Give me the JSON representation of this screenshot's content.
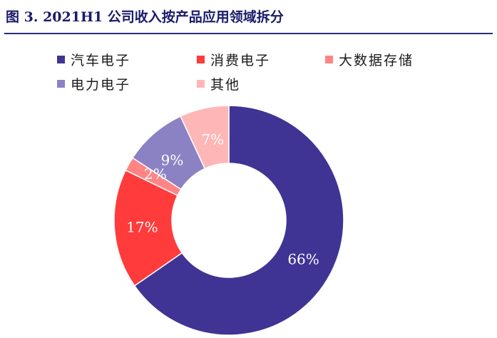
{
  "figure": {
    "title": "图 3. 2021H1 公司收入按产品应用领域拆分"
  },
  "chart_data": {
    "type": "pie",
    "donut": true,
    "unit": "%",
    "categories": [
      "汽车电子",
      "消费电子",
      "大数据存储",
      "电力电子",
      "其他"
    ],
    "values": [
      66,
      17,
      2,
      9,
      7
    ],
    "data_labels": [
      "66%",
      "17%",
      "2%",
      "9%",
      "7%"
    ],
    "colors": [
      "#3f3494",
      "#ff3b3b",
      "#ff8585",
      "#8b82c4",
      "#ffb6b6"
    ],
    "label_colors": [
      "#ffffff",
      "#ffffff",
      "#ffffff",
      "#ffffff",
      "#ffffff"
    ],
    "legend_position": "top",
    "start": "top",
    "direction": "clockwise"
  }
}
